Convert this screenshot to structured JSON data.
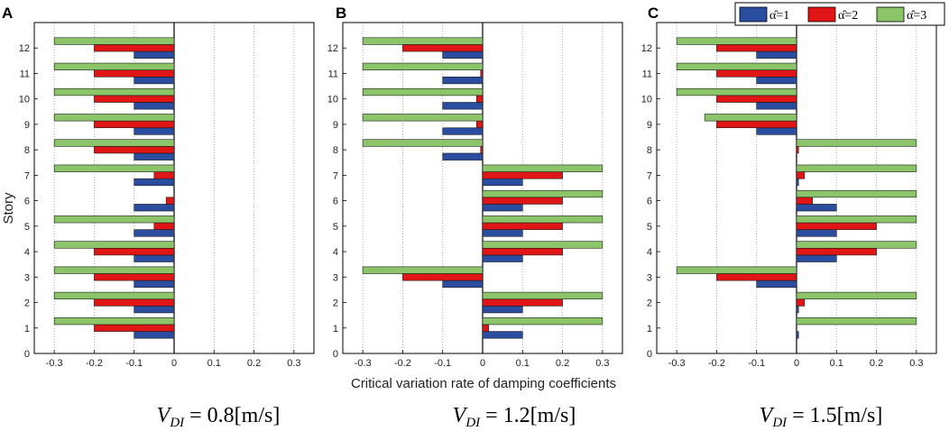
{
  "figure": {
    "xlabel": "Critical variation rate of damping coefficients",
    "ylabel": "Story",
    "legend": {
      "placement": "top-right",
      "entries": [
        {
          "label": "α̂=1",
          "color": "#2a4da0"
        },
        {
          "label": "α̂=2",
          "color": "#e01515"
        },
        {
          "label": "α̂=3",
          "color": "#8cc46a"
        }
      ]
    }
  },
  "chart_data": [
    {
      "type": "bar",
      "orientation": "horizontal",
      "panel": "A",
      "caption": {
        "v": "V",
        "sub": "DI",
        "rest": " = 0.8[m/s]"
      },
      "categories": [
        1,
        2,
        3,
        4,
        5,
        6,
        7,
        8,
        9,
        10,
        11,
        12
      ],
      "xlim": [
        -0.35,
        0.35
      ],
      "ylim": [
        0,
        13
      ],
      "xticks": [
        "-0.3",
        "-0.2",
        "-0.1",
        "0",
        "0.1",
        "0.2",
        "0.3"
      ],
      "yticks": [
        "0",
        "1",
        "2",
        "3",
        "4",
        "5",
        "6",
        "7",
        "8",
        "9",
        "10",
        "11",
        "12"
      ],
      "series": [
        {
          "name": "α̂=1",
          "values": [
            -0.1,
            -0.1,
            -0.1,
            -0.1,
            -0.1,
            -0.1,
            -0.1,
            -0.1,
            -0.1,
            -0.1,
            -0.1,
            -0.1
          ]
        },
        {
          "name": "α̂=2",
          "values": [
            -0.2,
            -0.2,
            -0.2,
            -0.2,
            -0.05,
            -0.02,
            -0.05,
            -0.2,
            -0.2,
            -0.2,
            -0.2,
            -0.2
          ]
        },
        {
          "name": "α̂=3",
          "values": [
            -0.3,
            -0.3,
            -0.3,
            -0.3,
            -0.3,
            0.0,
            -0.3,
            -0.3,
            -0.3,
            -0.3,
            -0.3,
            -0.3
          ]
        }
      ]
    },
    {
      "type": "bar",
      "orientation": "horizontal",
      "panel": "B",
      "caption": {
        "v": "V",
        "sub": "DI",
        "rest": " = 1.2[m/s]"
      },
      "categories": [
        1,
        2,
        3,
        4,
        5,
        6,
        7,
        8,
        9,
        10,
        11,
        12
      ],
      "xlim": [
        -0.35,
        0.35
      ],
      "ylim": [
        0,
        13
      ],
      "xticks": [
        "-0.3",
        "-0.2",
        "-0.1",
        "0",
        "0.1",
        "0.2",
        "0.3"
      ],
      "yticks": [
        "0",
        "1",
        "2",
        "3",
        "4",
        "5",
        "6",
        "7",
        "8",
        "9",
        "10",
        "11",
        "12"
      ],
      "series": [
        {
          "name": "α̂=1",
          "values": [
            0.1,
            0.1,
            -0.1,
            0.1,
            0.1,
            0.1,
            0.1,
            -0.1,
            -0.1,
            -0.1,
            -0.1,
            -0.1
          ]
        },
        {
          "name": "α̂=2",
          "values": [
            0.015,
            0.2,
            -0.2,
            0.2,
            0.2,
            0.2,
            0.2,
            -0.005,
            -0.015,
            -0.015,
            -0.005,
            -0.2
          ]
        },
        {
          "name": "α̂=3",
          "values": [
            0.3,
            0.3,
            -0.3,
            0.3,
            0.3,
            0.3,
            0.3,
            -0.3,
            -0.3,
            -0.3,
            -0.3,
            -0.3
          ]
        }
      ]
    },
    {
      "type": "bar",
      "orientation": "horizontal",
      "panel": "C",
      "caption": {
        "v": "V",
        "sub": "DI",
        "rest": " = 1.5[m/s]"
      },
      "categories": [
        1,
        2,
        3,
        4,
        5,
        6,
        7,
        8,
        9,
        10,
        11,
        12
      ],
      "xlim": [
        -0.35,
        0.35
      ],
      "ylim": [
        0,
        13
      ],
      "xticks": [
        "-0.3",
        "-0.2",
        "-0.1",
        "0",
        "0.1",
        "0.2",
        "0.3"
      ],
      "yticks": [
        "0",
        "1",
        "2",
        "3",
        "4",
        "5",
        "6",
        "7",
        "8",
        "9",
        "10",
        "11",
        "12"
      ],
      "series": [
        {
          "name": "α̂=1",
          "values": [
            0.005,
            0.005,
            -0.1,
            0.1,
            0.1,
            0.1,
            0.005,
            0.0,
            -0.1,
            -0.1,
            -0.1,
            -0.1
          ]
        },
        {
          "name": "α̂=2",
          "values": [
            0.0,
            0.02,
            -0.2,
            0.2,
            0.2,
            0.04,
            0.02,
            0.005,
            -0.2,
            -0.2,
            -0.2,
            -0.2
          ]
        },
        {
          "name": "α̂=3",
          "values": [
            0.3,
            0.3,
            -0.3,
            0.3,
            0.3,
            0.3,
            0.3,
            0.3,
            -0.23,
            -0.3,
            -0.3,
            -0.3
          ]
        }
      ]
    }
  ]
}
